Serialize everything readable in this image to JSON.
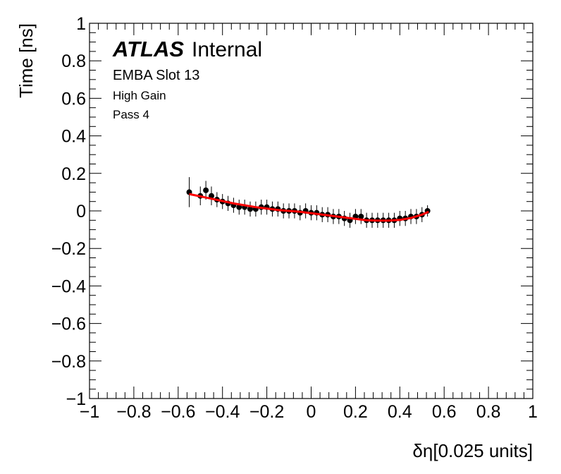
{
  "chart_data": {
    "type": "scatter",
    "xlabel": "δη[0.025 units]",
    "ylabel": "Time [ns]",
    "xlim": [
      -1,
      1
    ],
    "ylim": [
      -1,
      1
    ],
    "x_ticks": [
      -1,
      -0.8,
      -0.6,
      -0.4,
      -0.2,
      0,
      0.2,
      0.4,
      0.6,
      0.8,
      1
    ],
    "y_ticks": [
      -1,
      -0.8,
      -0.6,
      -0.4,
      -0.2,
      0,
      0.2,
      0.4,
      0.6,
      0.8,
      1
    ],
    "x_tick_labels": [
      "−1",
      "−0.8",
      "−0.6",
      "−0.4",
      "−0.2",
      "0",
      "0.2",
      "0.4",
      "0.6",
      "0.8",
      "1"
    ],
    "y_tick_labels": [
      "−1",
      "−0.8",
      "−0.6",
      "−0.4",
      "−0.2",
      "0",
      "0.2",
      "0.4",
      "0.6",
      "0.8",
      "1"
    ],
    "grid": false,
    "annotations": {
      "atlas": "ATLAS",
      "internal": "Internal",
      "line1": "EMBA Slot 13",
      "line2": "High Gain",
      "line3": "Pass 4"
    },
    "series": [
      {
        "kind": "points_with_errors",
        "color": "#000000",
        "x": [
          -0.55,
          -0.5,
          -0.475,
          -0.45,
          -0.425,
          -0.4,
          -0.375,
          -0.35,
          -0.325,
          -0.3,
          -0.275,
          -0.25,
          -0.225,
          -0.2,
          -0.175,
          -0.15,
          -0.125,
          -0.1,
          -0.075,
          -0.05,
          -0.025,
          0.0,
          0.025,
          0.05,
          0.075,
          0.1,
          0.125,
          0.15,
          0.175,
          0.2,
          0.225,
          0.25,
          0.275,
          0.3,
          0.325,
          0.35,
          0.375,
          0.4,
          0.425,
          0.45,
          0.475,
          0.5,
          0.525
        ],
        "y": [
          0.1,
          0.08,
          0.11,
          0.08,
          0.06,
          0.05,
          0.04,
          0.03,
          0.02,
          0.02,
          0.01,
          0.01,
          0.02,
          0.02,
          0.01,
          0.01,
          0.0,
          0.0,
          0.0,
          -0.01,
          0.0,
          -0.01,
          -0.01,
          -0.02,
          -0.02,
          -0.03,
          -0.03,
          -0.04,
          -0.05,
          -0.03,
          -0.03,
          -0.05,
          -0.05,
          -0.05,
          -0.05,
          -0.05,
          -0.05,
          -0.04,
          -0.04,
          -0.03,
          -0.03,
          -0.02,
          0.0
        ],
        "err": [
          0.08,
          0.05,
          0.05,
          0.05,
          0.04,
          0.04,
          0.04,
          0.04,
          0.04,
          0.04,
          0.04,
          0.04,
          0.04,
          0.04,
          0.04,
          0.04,
          0.04,
          0.04,
          0.04,
          0.04,
          0.04,
          0.04,
          0.04,
          0.04,
          0.04,
          0.04,
          0.04,
          0.04,
          0.04,
          0.04,
          0.04,
          0.04,
          0.04,
          0.04,
          0.04,
          0.04,
          0.04,
          0.04,
          0.04,
          0.04,
          0.04,
          0.04,
          0.03
        ]
      },
      {
        "kind": "fit_line",
        "color": "#ff0000",
        "x": [
          -0.55,
          -0.45,
          -0.35,
          -0.25,
          -0.15,
          -0.05,
          0.05,
          0.15,
          0.25,
          0.3,
          0.35,
          0.4,
          0.45,
          0.5,
          0.53
        ],
        "y": [
          0.09,
          0.065,
          0.04,
          0.02,
          0.005,
          -0.005,
          -0.02,
          -0.035,
          -0.05,
          -0.052,
          -0.052,
          -0.048,
          -0.038,
          -0.02,
          -0.005
        ]
      }
    ]
  }
}
